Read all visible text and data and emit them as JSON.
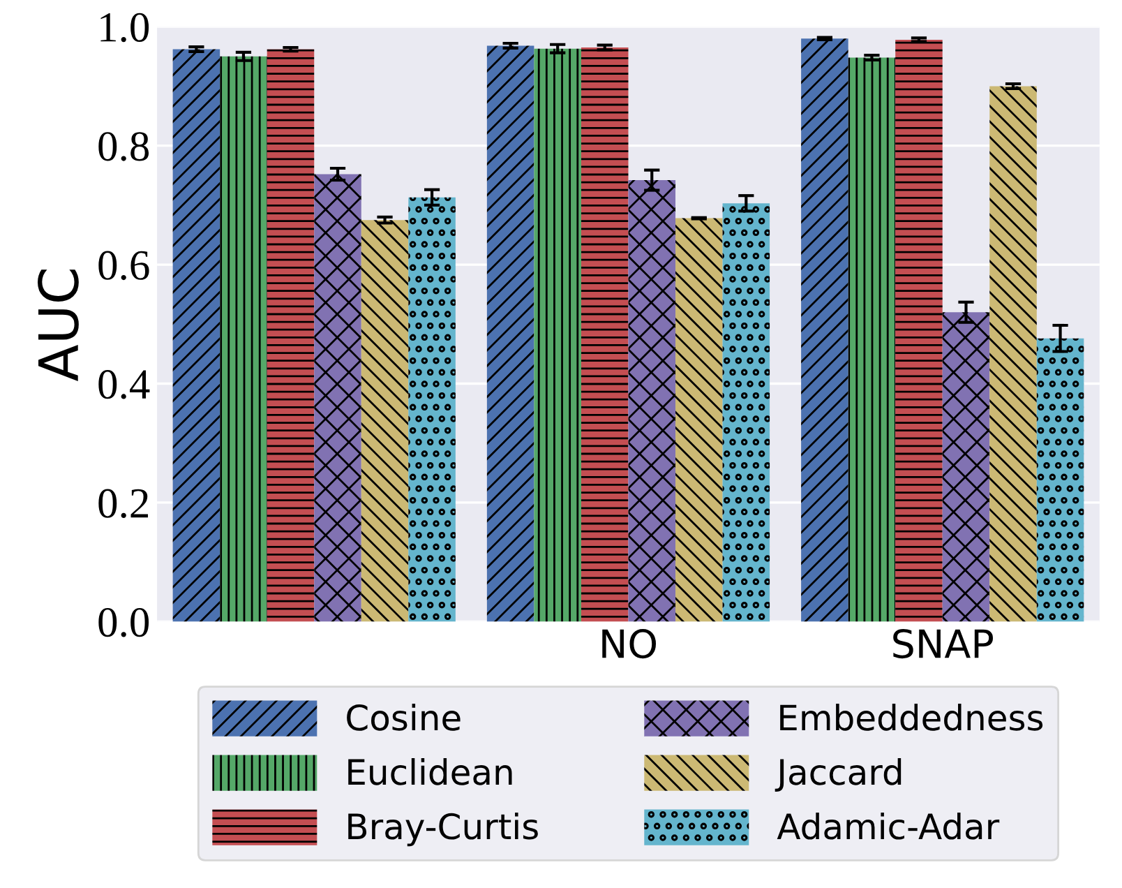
{
  "chart_data": {
    "type": "bar",
    "ylabel": "AUC",
    "categories": [
      null,
      "NO",
      "SNAP"
    ],
    "series": [
      {
        "name": "Cosine",
        "color": "#4c72b0",
        "values": [
          0.962,
          0.968,
          0.98
        ],
        "errors": [
          0.004,
          0.004,
          0.002
        ]
      },
      {
        "name": "Euclidean",
        "color": "#55a868",
        "values": [
          0.95,
          0.963,
          0.948
        ],
        "errors": [
          0.007,
          0.007,
          0.004
        ]
      },
      {
        "name": "Bray-Curtis",
        "color": "#c44e52",
        "values": [
          0.962,
          0.965,
          0.978
        ],
        "errors": [
          0.003,
          0.004,
          0.003
        ]
      },
      {
        "name": "Embeddedness",
        "color": "#8172b2",
        "values": [
          0.752,
          0.742,
          0.52
        ],
        "errors": [
          0.01,
          0.017,
          0.017
        ]
      },
      {
        "name": "Jaccard",
        "color": "#ccb974",
        "values": [
          0.675,
          0.678,
          0.9
        ],
        "errors": [
          0.005,
          0.001,
          0.004
        ]
      },
      {
        "name": "Adamic-Adar",
        "color": "#64b5cd",
        "values": [
          0.713,
          0.703,
          0.476
        ],
        "errors": [
          0.013,
          0.013,
          0.022
        ]
      }
    ],
    "ylim": [
      0,
      1.0
    ],
    "yticks": [
      {
        "value": 0,
        "label": "0.0"
      },
      0.2,
      0.4,
      0.6,
      0.8,
      {
        "value": 1.0,
        "label": "1.0"
      }
    ],
    "grid": "y",
    "legend": "bottom"
  }
}
